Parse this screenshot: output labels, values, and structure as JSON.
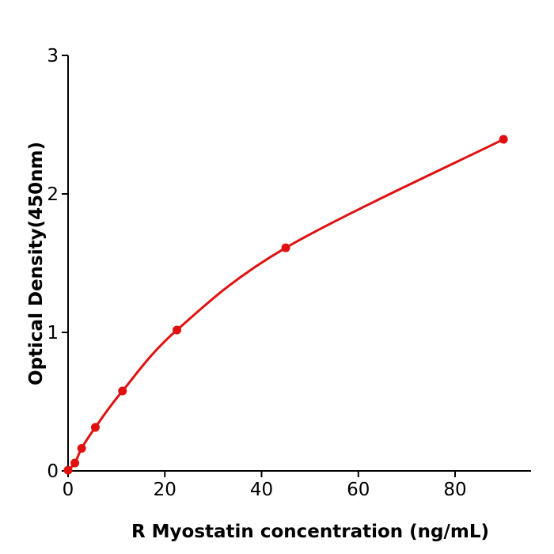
{
  "chart_data": {
    "type": "line",
    "title": "",
    "xlabel": "R  Myostatin concentration (ng/mL)",
    "ylabel": "Optical Density(450nm)",
    "xlim": [
      0,
      95.7
    ],
    "ylim": [
      0,
      3
    ],
    "xticks": [
      "0",
      "20",
      "40",
      "60",
      "80"
    ],
    "yticks": [
      "0",
      "1",
      "2",
      "3"
    ],
    "grid": false,
    "color": "#e01010",
    "series": [
      {
        "x": [
          0,
          1.41,
          2.81,
          5.63,
          11.25,
          22.5,
          45,
          90
        ],
        "y": [
          0.005,
          0.057,
          0.163,
          0.314,
          0.577,
          1.017,
          1.611,
          2.394
        ]
      }
    ]
  }
}
